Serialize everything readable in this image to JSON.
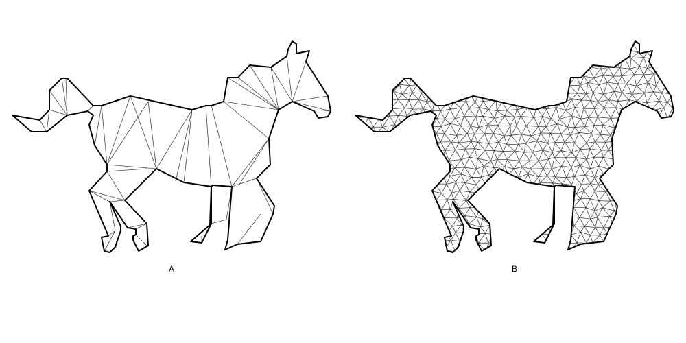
{
  "panels": [
    {
      "id": "coarse",
      "label": "A",
      "mesh": "coarse"
    },
    {
      "id": "fine",
      "label": "B",
      "mesh": "fine"
    }
  ]
}
